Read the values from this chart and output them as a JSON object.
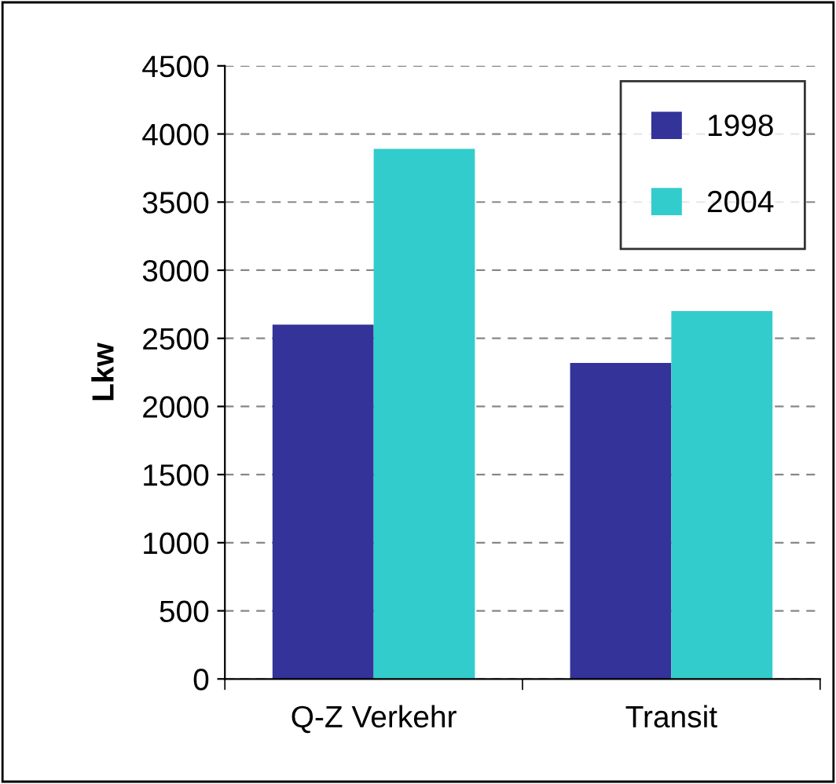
{
  "chart_data": {
    "type": "bar",
    "ylabel": "Lkw",
    "categories": [
      "Q-Z Verkehr",
      "Transit"
    ],
    "series": [
      {
        "name": "1998",
        "color": "#333399",
        "values": [
          2600,
          2320
        ]
      },
      {
        "name": "2004",
        "color": "#33cccc",
        "values": [
          3890,
          2700
        ]
      }
    ],
    "ylim": [
      0,
      4500
    ],
    "yticks": [
      0,
      500,
      1000,
      1500,
      2000,
      2500,
      3000,
      3500,
      4000,
      4500
    ],
    "grid": "y",
    "legend": "top right"
  }
}
